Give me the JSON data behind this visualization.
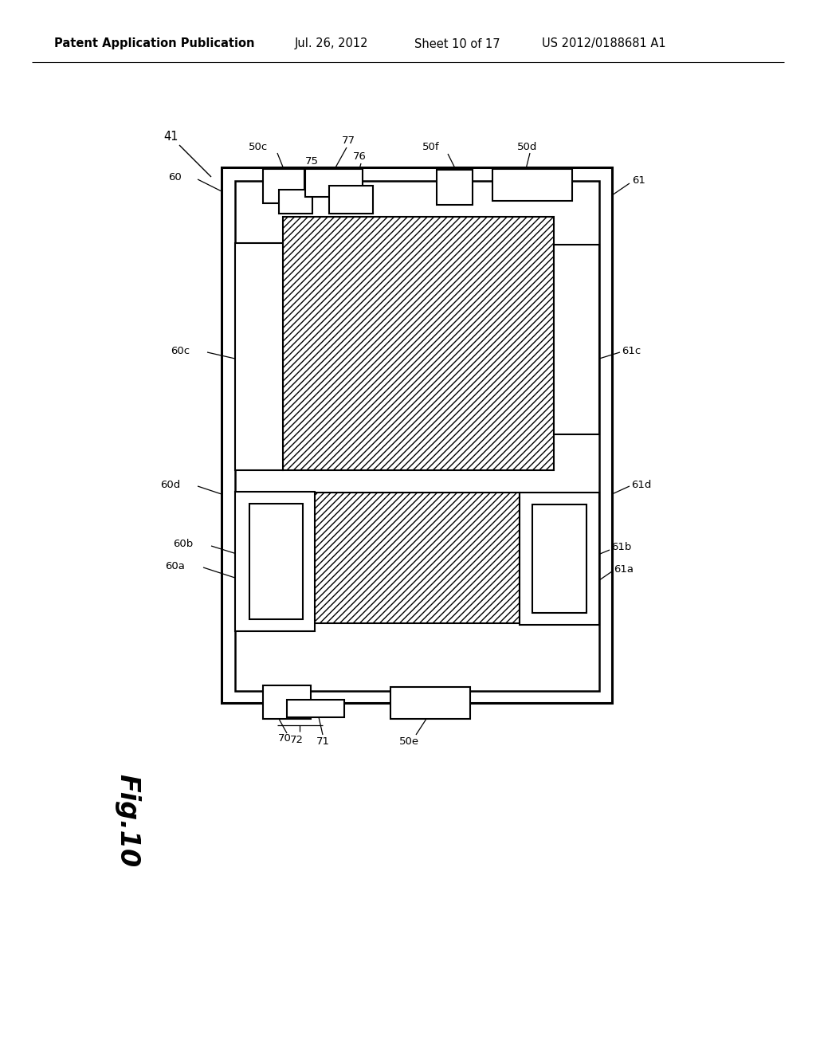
{
  "header_left": "Patent Application Publication",
  "header_mid": "Jul. 26, 2012",
  "header_sheet": "Sheet 10 of 17",
  "header_right": "US 2012/0188681 A1",
  "fig_label": "Fig.10",
  "bg_color": "#ffffff",
  "line_color": "#000000",
  "header_fontsize": 10.5,
  "label_fontsize": 9.5
}
